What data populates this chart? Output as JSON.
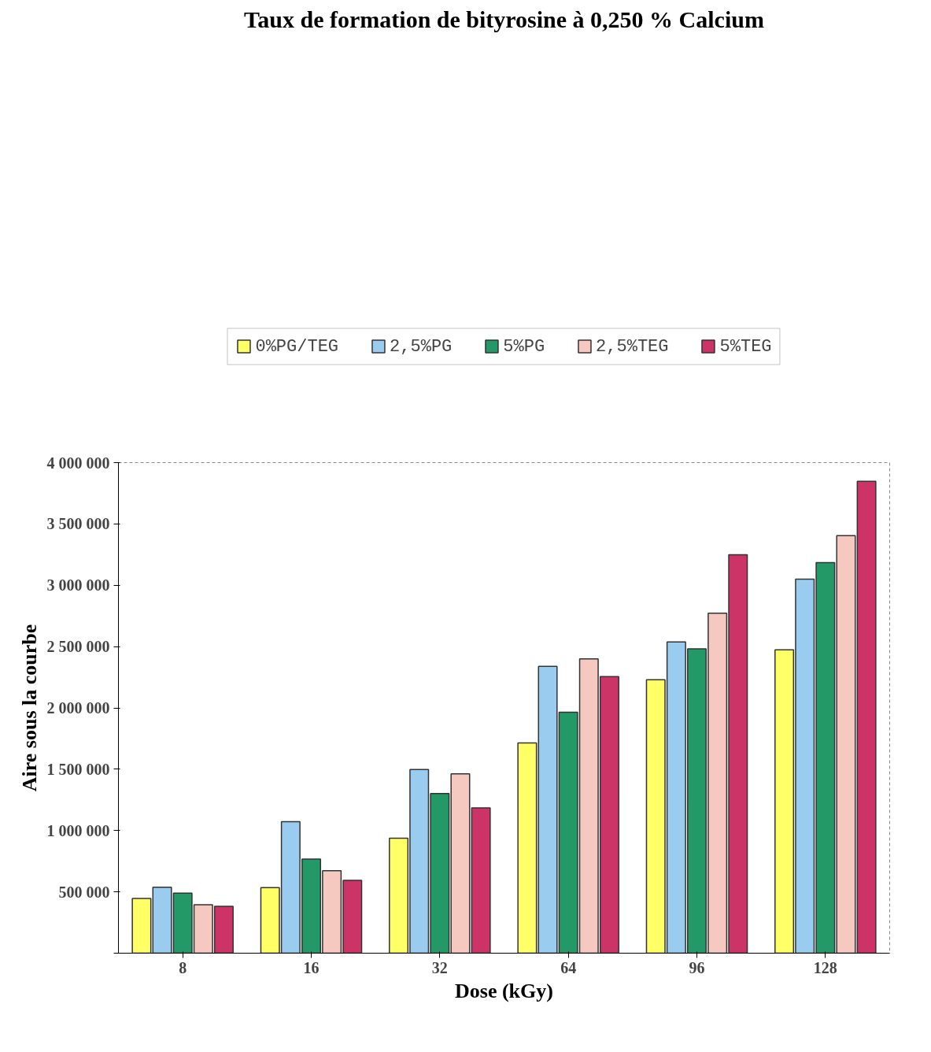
{
  "chart_data": {
    "type": "bar",
    "title": "Taux de formation de bityrosine à 0,250 % Calcium",
    "xlabel": "Dose (kGy)",
    "ylabel": "Aire sous la courbe",
    "categories": [
      "8",
      "16",
      "32",
      "64",
      "96",
      "128"
    ],
    "series": [
      {
        "name": "0%PG/TEG",
        "color": "#ffff66",
        "values": [
          447000,
          534000,
          937000,
          1714000,
          2230000,
          2473000
        ]
      },
      {
        "name": "2,5%PG",
        "color": "#99ccee",
        "values": [
          538000,
          1072000,
          1497000,
          2338000,
          2538000,
          3050000
        ]
      },
      {
        "name": "5%PG",
        "color": "#229966",
        "values": [
          490000,
          768000,
          1302000,
          1965000,
          2481000,
          3184000
        ]
      },
      {
        "name": "2,5%TEG",
        "color": "#f5c8c0",
        "values": [
          395000,
          672000,
          1462000,
          2399000,
          2772000,
          3405000
        ]
      },
      {
        "name": "5%TEG",
        "color": "#cc3366",
        "values": [
          382000,
          594000,
          1184000,
          2256000,
          3249000,
          3848000
        ]
      }
    ],
    "ylim": [
      0,
      4000000
    ],
    "yticks": [
      {
        "value": 0,
        "label": null
      },
      {
        "value": 500000,
        "label": "500 000"
      },
      {
        "value": 1000000,
        "label": "1 000 000"
      },
      {
        "value": 1500000,
        "label": "1 500 000"
      },
      {
        "value": 2000000,
        "label": "2 000 000"
      },
      {
        "value": 2500000,
        "label": "2 500 000"
      },
      {
        "value": 3000000,
        "label": "3 000 000"
      },
      {
        "value": 3500000,
        "label": "3 500 000"
      },
      {
        "value": 4000000,
        "label": "4 000 000"
      }
    ],
    "grid": false,
    "legend": "top"
  }
}
